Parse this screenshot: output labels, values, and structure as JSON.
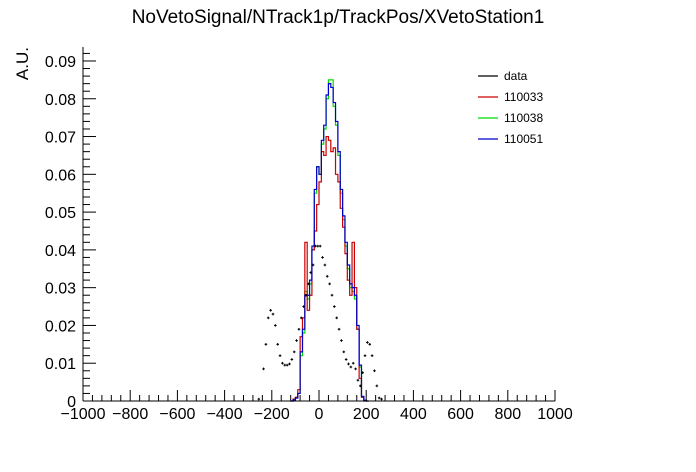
{
  "chart_data": {
    "type": "histogram",
    "title": "NoVetoSignal/NTrack1p/TrackPos/XVetoStation1",
    "xlabel": "",
    "ylabel": "A.U.",
    "xlim": [
      -1000,
      1000
    ],
    "ylim": [
      0,
      0.0937
    ],
    "xticks": [
      -1000,
      -800,
      -600,
      -400,
      -200,
      0,
      200,
      400,
      600,
      800,
      1000
    ],
    "xtick_labels": [
      "−1000",
      "−800",
      "−600",
      "−400",
      "−200",
      "0",
      "200",
      "400",
      "600",
      "800",
      "1000"
    ],
    "yticks": [
      0,
      0.01,
      0.02,
      0.03,
      0.04,
      0.05,
      0.06,
      0.07,
      0.08,
      0.09
    ],
    "ytick_labels": [
      "0",
      "0.01",
      "0.02",
      "0.03",
      "0.04",
      "0.05",
      "0.06",
      "0.07",
      "0.08",
      "0.09"
    ],
    "bin_width": 10,
    "bin_start": -120,
    "legend": {
      "placement": "top-right",
      "entries": [
        "data",
        "110033",
        "110038",
        "110051"
      ]
    },
    "series": [
      {
        "name": "data",
        "type": "points",
        "color": "#000000",
        "x": [
          -255,
          -235,
          -225,
          -215,
          -205,
          -195,
          -185,
          -175,
          -165,
          -155,
          -145,
          -135,
          -125,
          -115,
          -105,
          -95,
          -85,
          -75,
          -65,
          -55,
          -45,
          -35,
          -25,
          -15,
          -5,
          5,
          15,
          25,
          35,
          45,
          55,
          65,
          75,
          85,
          95,
          105,
          115,
          125,
          135,
          145,
          155,
          165,
          175,
          185,
          195,
          205,
          215,
          225,
          235,
          245,
          255,
          265
        ],
        "y": [
          0.0005,
          0.0085,
          0.015,
          0.022,
          0.024,
          0.023,
          0.02,
          0.015,
          0.012,
          0.01,
          0.0095,
          0.0095,
          0.0098,
          0.011,
          0.013,
          0.016,
          0.019,
          0.022,
          0.025,
          0.028,
          0.031,
          0.034,
          0.036,
          0.041,
          0.041,
          0.041,
          0.038,
          0.036,
          0.033,
          0.031,
          0.028,
          0.025,
          0.022,
          0.019,
          0.016,
          0.013,
          0.011,
          0.0098,
          0.009,
          0.01,
          0.0085,
          0.0055,
          0.004,
          0.0075,
          0.012,
          0.0155,
          0.015,
          0.012,
          0.008,
          0.004,
          0.0008,
          0.0005
        ]
      },
      {
        "name": "110033",
        "type": "step",
        "color": "#cc0000",
        "values": [
          0,
          0.0005,
          0.001,
          0.003,
          0.017,
          0.022,
          0.042,
          0.024,
          0.028,
          0.04,
          0.045,
          0.052,
          0.058,
          0.066,
          0.065,
          0.07,
          0.069,
          0.066,
          0.067,
          0.06,
          0.058,
          0.051,
          0.046,
          0.039,
          0.032,
          0.028,
          0.042,
          0.03,
          0.019,
          0.006,
          0.001,
          0,
          0
        ]
      },
      {
        "name": "110038",
        "type": "step",
        "color": "#00dd00",
        "values": [
          0,
          0.0003,
          0.0008,
          0.002,
          0.012,
          0.018,
          0.029,
          0.027,
          0.031,
          0.04,
          0.055,
          0.062,
          0.06,
          0.068,
          0.072,
          0.08,
          0.085,
          0.085,
          0.078,
          0.073,
          0.065,
          0.055,
          0.048,
          0.041,
          0.035,
          0.03,
          0.029,
          0.027,
          0.019,
          0.009,
          0.0012,
          0.0002,
          0
        ]
      },
      {
        "name": "110051",
        "type": "step",
        "color": "#0000cc",
        "values": [
          0,
          0.0003,
          0.0008,
          0.002,
          0.013,
          0.019,
          0.028,
          0.028,
          0.032,
          0.041,
          0.056,
          0.062,
          0.06,
          0.069,
          0.073,
          0.081,
          0.084,
          0.083,
          0.079,
          0.074,
          0.066,
          0.056,
          0.049,
          0.042,
          0.036,
          0.031,
          0.03,
          0.028,
          0.02,
          0.0095,
          0.0012,
          0.0002,
          0
        ]
      }
    ]
  }
}
